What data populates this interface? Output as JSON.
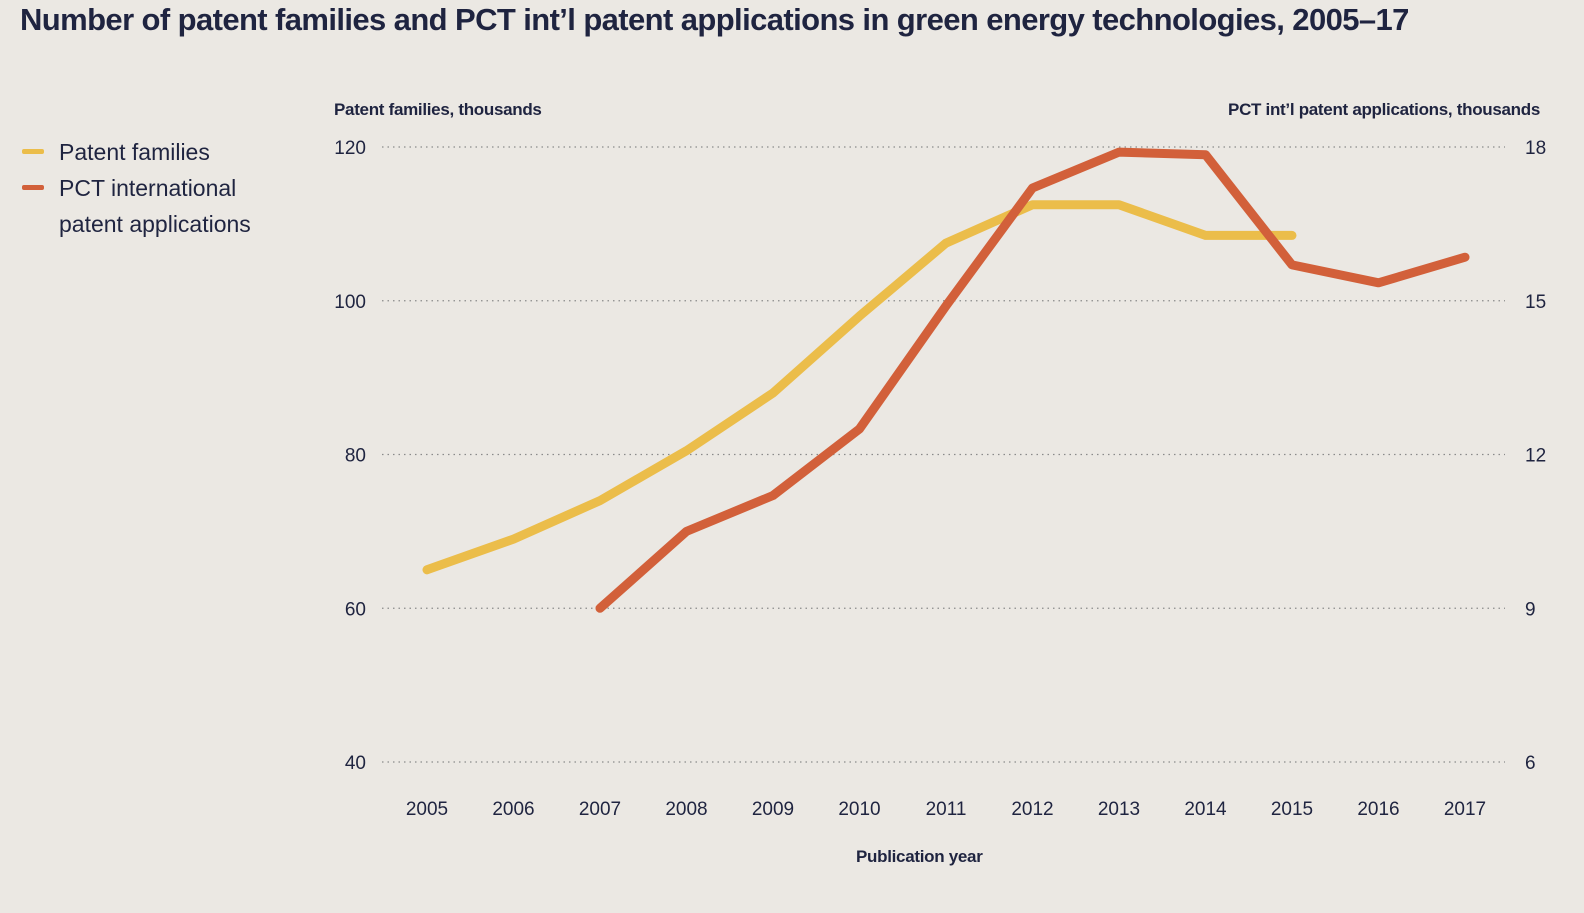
{
  "chart_data": {
    "type": "line",
    "title": "Number of patent families and PCT int’l patent applications in green energy technologies, 2005–17",
    "xlabel": "Publication year",
    "ylabel_left": "Patent families, thousands",
    "ylabel_right": "PCT int’l patent applications, thousands",
    "x": [
      "2005",
      "2006",
      "2007",
      "2008",
      "2009",
      "2010",
      "2011",
      "2012",
      "2013",
      "2014",
      "2015",
      "2016",
      "2017"
    ],
    "y_left_ticks": [
      "40",
      "60",
      "80",
      "100",
      "120"
    ],
    "y_right_ticks": [
      "6",
      "9",
      "12",
      "15",
      "18"
    ],
    "ylim_left": [
      40,
      120
    ],
    "ylim_right": [
      6,
      18
    ],
    "grid": "horizontal dotted",
    "legend_position": "left",
    "series": [
      {
        "name": "Patent families",
        "axis": "left",
        "color": "#ebbd4a",
        "values": [
          65,
          69,
          74,
          80.5,
          88,
          98,
          107.5,
          112.5,
          112.5,
          108.5,
          108.5,
          null,
          null
        ]
      },
      {
        "name": "PCT international patent applications",
        "axis": "right",
        "color": "#d2603a",
        "values": [
          null,
          null,
          9.0,
          10.5,
          11.2,
          12.5,
          14.9,
          17.2,
          17.9,
          17.85,
          15.7,
          15.35,
          15.85
        ]
      }
    ]
  },
  "legend": {
    "items": [
      {
        "label": "Patent families",
        "color": "#ebbd4a"
      },
      {
        "label": "PCT international patent applications",
        "color": "#d2603a"
      }
    ]
  }
}
